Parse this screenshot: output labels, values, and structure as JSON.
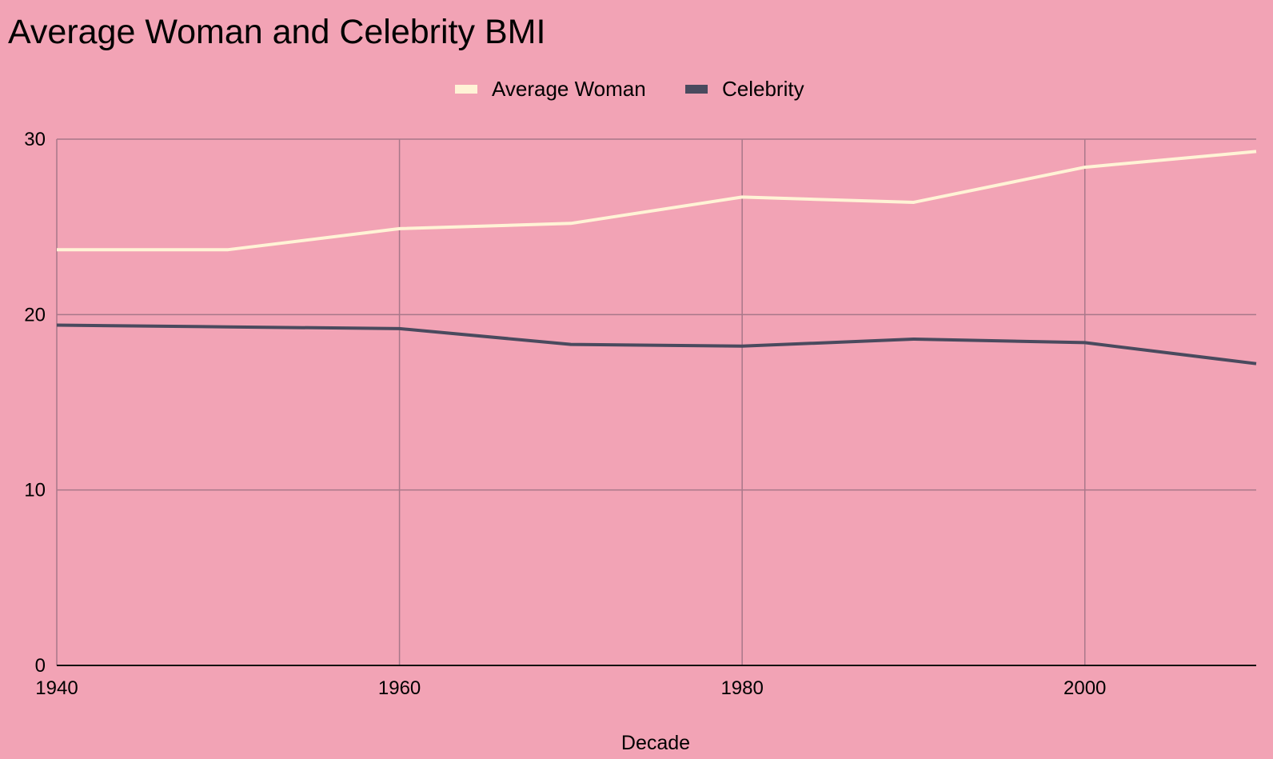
{
  "chart_data": {
    "type": "line",
    "title": "Average Woman and Celebrity BMI",
    "xlabel": "Decade",
    "ylabel": "",
    "x": [
      1940,
      1950,
      1960,
      1970,
      1980,
      1990,
      2000,
      2010
    ],
    "xlim": [
      1940,
      2010
    ],
    "ylim": [
      0,
      30
    ],
    "x_ticks": [
      1940,
      1960,
      1980,
      2000
    ],
    "y_ticks": [
      0,
      10,
      20,
      30
    ],
    "grid": true,
    "legend_position": "top-center",
    "background_color": "#f2a3b5",
    "series": [
      {
        "name": "Average Woman",
        "color": "#fff3d6",
        "values": [
          23.7,
          23.7,
          24.9,
          25.2,
          26.7,
          26.4,
          28.4,
          29.3
        ]
      },
      {
        "name": "Celebrity",
        "color": "#4a4a5e",
        "values": [
          19.4,
          19.3,
          19.2,
          18.3,
          18.2,
          18.6,
          18.4,
          17.2
        ]
      }
    ]
  }
}
